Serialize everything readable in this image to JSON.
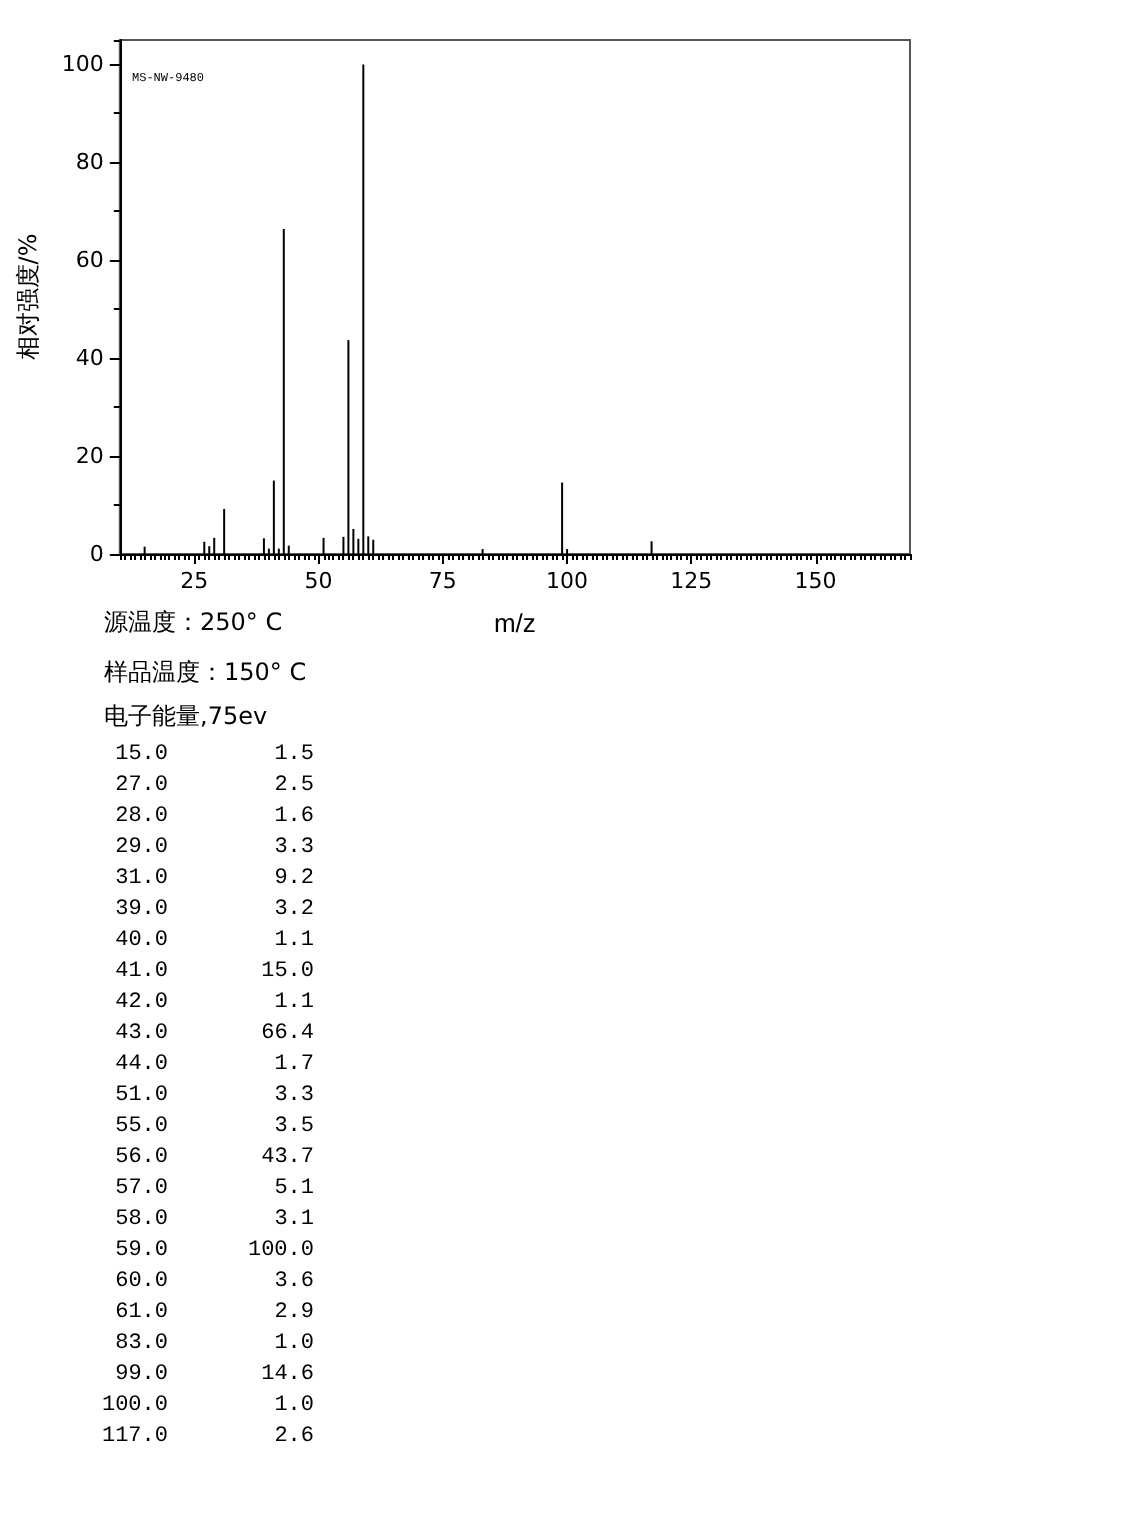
{
  "chart_data": {
    "type": "bar",
    "xlabel": "m/z",
    "ylabel": "相对强度/%",
    "annotations": [
      "MS-NW-9480",
      "源温度：250° C",
      "样品温度：150° C",
      "电子能量,75ev",
      "15.0 1.5",
      "27.0 2.5",
      "28.0 1.6",
      "29.0 3.3",
      "31.0 9.2",
      "39.0 3.2",
      "40.0 1.1",
      "41.0 15.0",
      "42.0 1.1",
      "43.0 66.4",
      "44.0 1.7",
      "51.0 3.3",
      "55.0 3.5",
      "56.0 43.7",
      "57.0 5.1",
      "58.0 3.1",
      "59.0 100.0",
      "60.0 3.6",
      "61.0 2.9",
      "83.0 1.0",
      "99.0 14.6",
      "100.0 1.0",
      "117.0 2.6"
    ],
    "x": [
      15,
      27,
      28,
      29,
      31,
      39,
      40,
      41,
      42,
      43,
      44,
      51,
      55,
      56,
      57,
      58,
      59,
      60,
      61,
      83,
      99,
      100,
      117
    ],
    "values": [
      1.5,
      2.5,
      1.6,
      3.3,
      9.2,
      3.2,
      1.1,
      15.0,
      1.1,
      66.4,
      1.7,
      3.3,
      3.5,
      43.7,
      5.1,
      3.1,
      100.0,
      3.6,
      2.9,
      1.0,
      14.6,
      1.0,
      2.6
    ],
    "color": "#000000",
    "xlim": [
      10,
      169
    ],
    "xticks": [
      25,
      50,
      75,
      100,
      125,
      150
    ],
    "ylim": [
      0,
      105
    ],
    "yticks": [
      0,
      20,
      40,
      60,
      80,
      100
    ],
    "grid": false
  }
}
